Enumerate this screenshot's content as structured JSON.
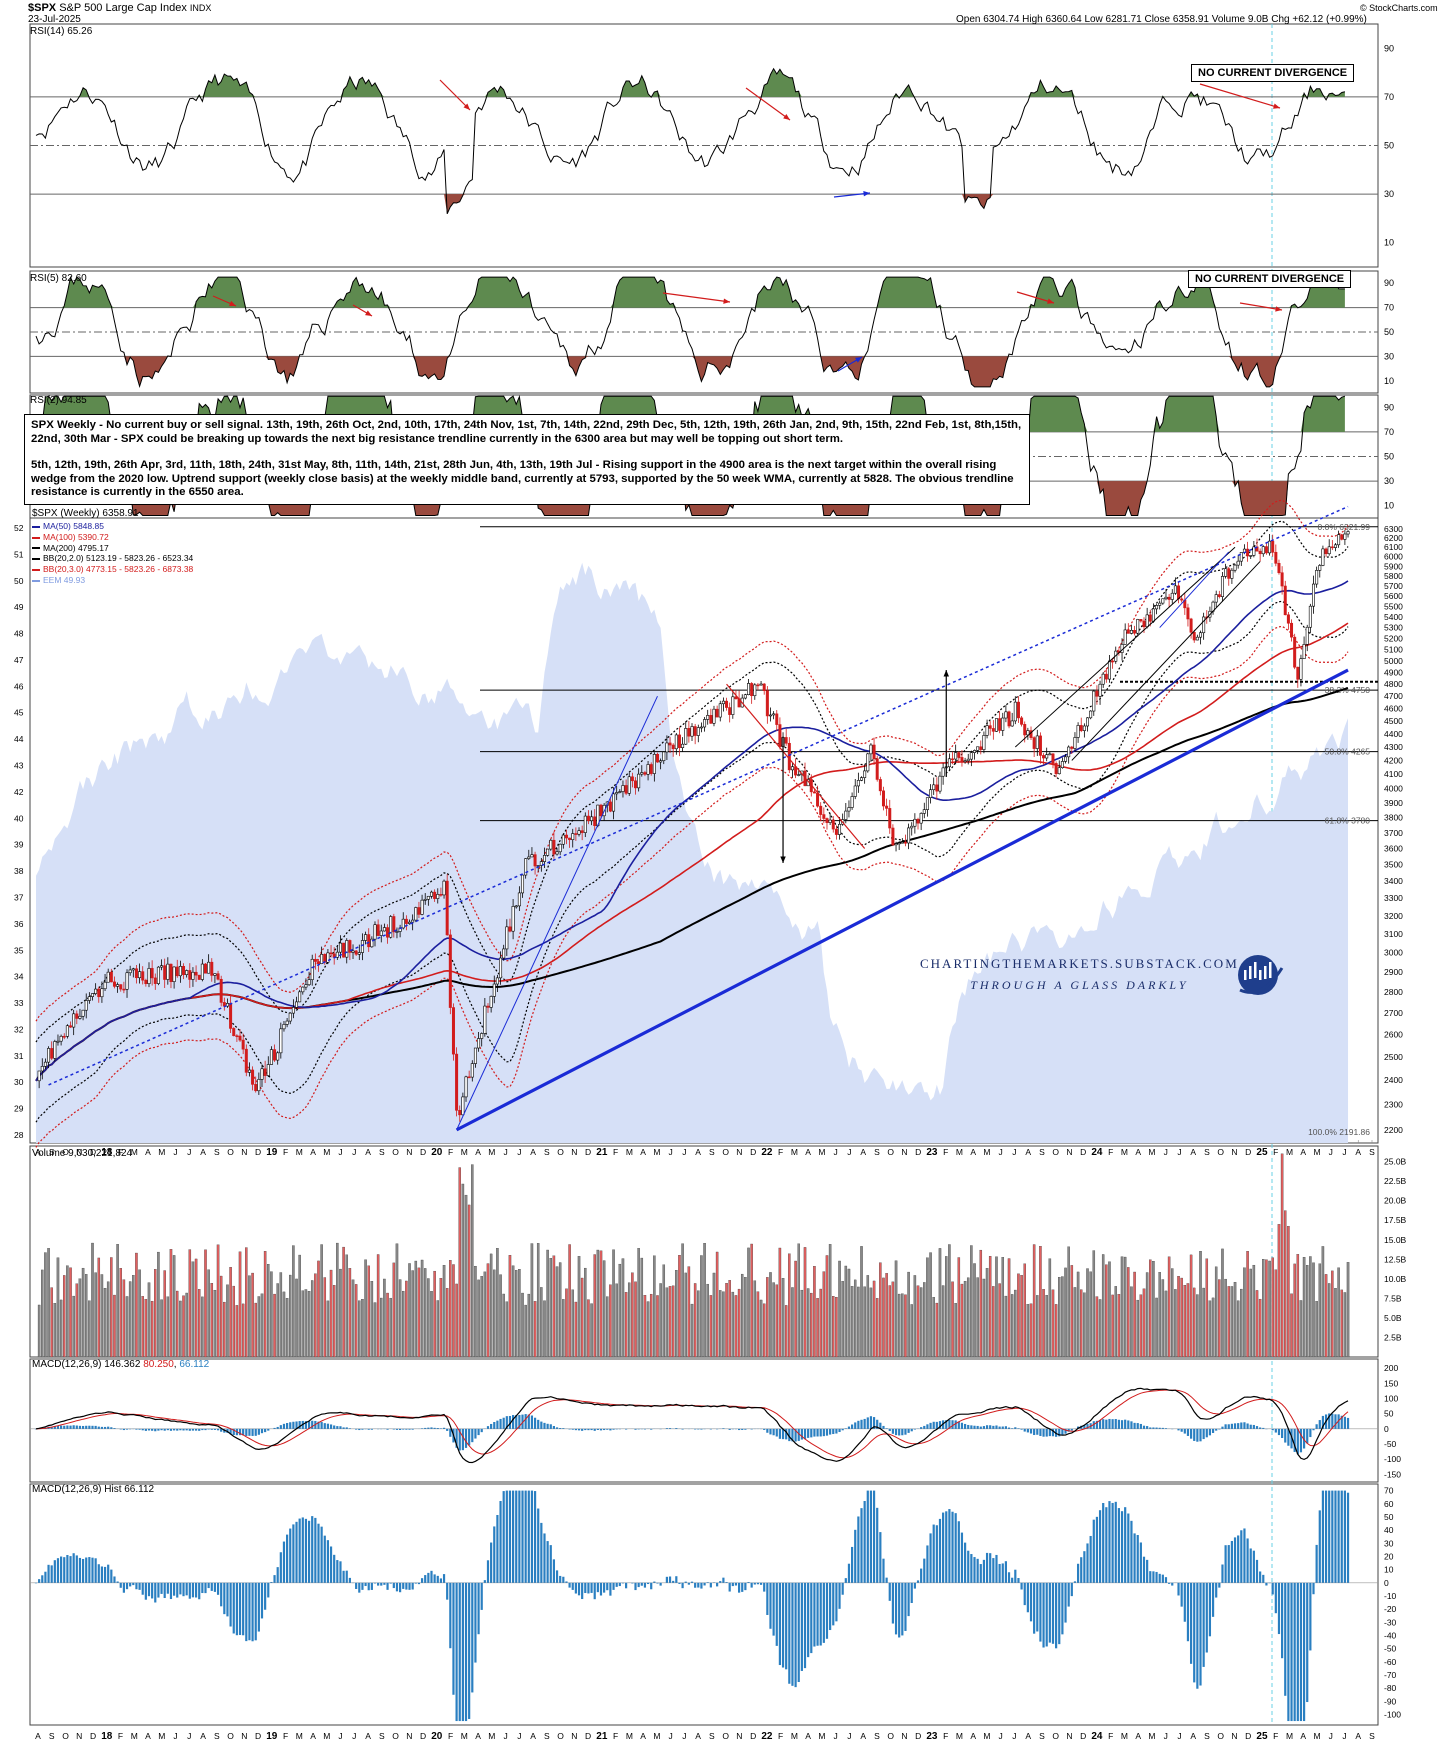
{
  "header": {
    "symbol": "$SPX",
    "name": "S&P 500 Large Cap Index",
    "exchange": "INDX",
    "date": "23-Jul-2025",
    "ohlc": "Open 6304.74  High 6360.64  Low 6281.71  Close 6358.91  Volume 9.0B  Chg +62.12 (+0.99%)",
    "credit": "© StockCharts.com"
  },
  "panels": {
    "rsi14": {
      "label": "RSI(14) 65.26",
      "ticks": [
        "90",
        "70",
        "50",
        "30",
        "10"
      ],
      "tag": "NO CURRENT DIVERGENCE"
    },
    "rsi5": {
      "label": "RSI(5) 82.60",
      "ticks": [
        "90",
        "70",
        "50",
        "30",
        "10"
      ],
      "tag": "NO CURRENT DIVERGENCE"
    },
    "rsi2": {
      "label": "RSI(2) 94.85",
      "ticks": [
        "90",
        "70",
        "50",
        "30",
        "10"
      ]
    },
    "price": {
      "label": "$SPX (Weekly) 6358.91",
      "legend": [
        {
          "text": "MA(50) 5848.85",
          "color": "#1b1f9e"
        },
        {
          "text": "MA(100) 5390.72",
          "color": "#d21c1c"
        },
        {
          "text": "MA(200) 4795.17",
          "color": "#000000"
        },
        {
          "text": "BB(20,2.0) 5123.19 - 5823.26 - 6523.34",
          "color": "#000000"
        },
        {
          "text": "BB(20,3.0) 4773.15 - 5823.26 - 6873.38",
          "color": "#d21c1c"
        },
        {
          "text": "EEM 49.93",
          "color": "#7f9be0"
        }
      ],
      "left_ticks": [
        "52",
        "51",
        "50",
        "49",
        "48",
        "47",
        "46",
        "45",
        "44",
        "43",
        "42",
        "40",
        "39",
        "38",
        "37",
        "36",
        "35",
        "34",
        "33",
        "32",
        "31",
        "30",
        "29",
        "28"
      ],
      "right_ticks": [
        "6300",
        "6200",
        "6100",
        "6000",
        "5900",
        "5800",
        "5700",
        "5600",
        "5500",
        "5400",
        "5300",
        "5200",
        "5100",
        "5000",
        "4900",
        "4800",
        "4700",
        "4600",
        "4500",
        "4400",
        "4300",
        "4200",
        "4100",
        "4000",
        "3900",
        "3800",
        "3700",
        "3600",
        "3500",
        "3400",
        "3300",
        "3200",
        "3100",
        "3000",
        "2900",
        "2800",
        "2700",
        "2600",
        "2500",
        "2400",
        "2300",
        "2200"
      ],
      "fib": [
        {
          "label": "0.0% 6321.99"
        },
        {
          "label": "38.2% 4750"
        },
        {
          "label": "50.0% 4265"
        },
        {
          "label": "61.8% 3780"
        },
        {
          "label": "100.0% 2191.86"
        }
      ],
      "note_p1": "SPX Weekly - No current buy or sell signal.\n13th, 19th, 26th Oct, 2nd, 10th, 17th, 24th Nov, 1st, 7th, 14th, 22nd, 29th Dec, 5th, 12th, 19th, 26th Jan, 2nd, 9th, 15th, 22nd Feb, 1st, 8th,15th, 22nd, 30th Mar -  SPX could be breaking up towards the next big resistance trendline currently in the 6300 area but may well be topping out short term.",
      "note_p2": "5th, 12th, 19th, 26th Apr, 3rd, 11th, 18th, 24th, 31st May, 8th, 11th, 14th, 21st, 28th Jun, 4th, 13th, 19th Jul - Rising support in the 4900 area is the next target within the overall rising wedge from the 2020 low. Uptrend support (weekly close basis) at the weekly middle band, currently at 5793, supported by the 50 week WMA, currently at 5828. The obvious trendline resistance is currently in the 6550 area.",
      "watermark_1": "CHARTINGTHEMARKETS.SUBSTACK.COM",
      "watermark_2": "THROUGH A GLASS DARKLY"
    },
    "volume": {
      "label": "Volume 9,030,221,824",
      "ticks": [
        "25.0B",
        "22.5B",
        "20.0B",
        "17.5B",
        "15.0B",
        "12.5B",
        "10.0B",
        "7.5B",
        "5.0B",
        "2.5B"
      ]
    },
    "macd": {
      "label_a": "MACD(12,26,9) 146.362",
      "label_b": "80.250",
      "label_c": "66.112",
      "ticks": [
        "200",
        "150",
        "100",
        "50",
        "0",
        "-50",
        "-100",
        "-150"
      ]
    },
    "hist": {
      "label": "MACD(12,26,9) Hist 66.112",
      "ticks": [
        "70",
        "60",
        "50",
        "40",
        "30",
        "20",
        "10",
        "0",
        "-10",
        "-20",
        "-30",
        "-40",
        "-50",
        "-60",
        "-70",
        "-80",
        "-90",
        "-100"
      ]
    }
  },
  "x_axis": {
    "labels": [
      "A",
      "S",
      "O",
      "N",
      "D",
      "18",
      "F",
      "M",
      "A",
      "M",
      "J",
      "J",
      "A",
      "S",
      "O",
      "N",
      "D",
      "19",
      "F",
      "M",
      "A",
      "M",
      "J",
      "J",
      "A",
      "S",
      "O",
      "N",
      "D",
      "20",
      "F",
      "M",
      "A",
      "M",
      "J",
      "J",
      "A",
      "S",
      "O",
      "N",
      "D",
      "21",
      "F",
      "M",
      "A",
      "M",
      "J",
      "J",
      "A",
      "S",
      "O",
      "N",
      "D",
      "22",
      "F",
      "M",
      "A",
      "M",
      "J",
      "J",
      "A",
      "S",
      "O",
      "N",
      "D",
      "23",
      "F",
      "M",
      "A",
      "M",
      "J",
      "J",
      "A",
      "S",
      "O",
      "N",
      "D",
      "24",
      "F",
      "M",
      "A",
      "M",
      "J",
      "J",
      "A",
      "S",
      "O",
      "N",
      "D",
      "25",
      "F",
      "M",
      "A",
      "M",
      "J",
      "J",
      "A",
      "S"
    ]
  },
  "chart_data": {
    "type": "line",
    "title": "$SPX (Weekly)",
    "x": [
      "2017-08",
      "2018-01",
      "2018-09",
      "2018-12",
      "2019-04",
      "2019-12",
      "2020-02",
      "2020-03",
      "2020-08",
      "2021-01",
      "2021-06",
      "2022-01",
      "2022-03",
      "2022-06",
      "2022-08",
      "2022-10",
      "2023-02",
      "2023-07",
      "2023-10",
      "2024-03",
      "2024-07",
      "2024-08",
      "2024-12",
      "2025-02",
      "2025-04",
      "2025-05",
      "2025-07"
    ],
    "series": [
      {
        "name": "$SPX",
        "values": [
          2440,
          2850,
          2920,
          2350,
          2920,
          3230,
          3390,
          2240,
          3500,
          3800,
          4250,
          4800,
          4200,
          3700,
          4300,
          3580,
          4130,
          4580,
          4120,
          5250,
          5640,
          5180,
          6090,
          6140,
          4830,
          5900,
          6359
        ]
      }
    ],
    "ylim": [
      2200,
      6400
    ],
    "colors": {
      "up": "#000000",
      "down": "#d21c1c",
      "eem_fill": "#d6e0f7",
      "ma50": "#1b1f9e",
      "ma100": "#d21c1c",
      "ma200": "#000000"
    }
  }
}
